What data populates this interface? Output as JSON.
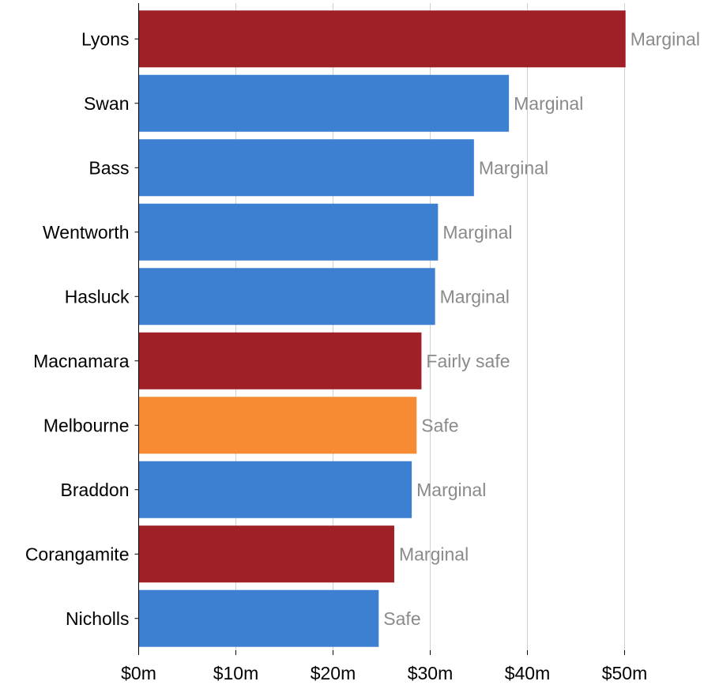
{
  "colors": {
    "red": "#a02027",
    "blue": "#3d80d1",
    "orange": "#f68b33",
    "gridline": "#d0d0d0",
    "axis": "#000000",
    "category_text": "#000000",
    "data_label_text": "#8a8a8a"
  },
  "chart_data": {
    "type": "bar",
    "orientation": "horizontal",
    "title": "",
    "xlabel": "",
    "ylabel": "",
    "xlim": [
      0,
      55
    ],
    "grid": "vertical",
    "x_ticks": [
      0,
      10,
      20,
      30,
      40,
      50
    ],
    "x_tick_labels": [
      "$0m",
      "$10m",
      "$20m",
      "$30m",
      "$40m",
      "$50m"
    ],
    "categories": [
      "Lyons",
      "Swan",
      "Bass",
      "Wentworth",
      "Hasluck",
      "Macnamara",
      "Melbourne",
      "Braddon",
      "Corangamite",
      "Nicholls"
    ],
    "values": [
      50.1,
      38.1,
      34.5,
      30.8,
      30.5,
      29.1,
      28.6,
      28.1,
      26.3,
      24.7
    ],
    "bar_colors": [
      "red",
      "blue",
      "blue",
      "blue",
      "blue",
      "red",
      "orange",
      "blue",
      "red",
      "blue"
    ],
    "data_labels": [
      "Marginal",
      "Marginal",
      "Marginal",
      "Marginal",
      "Marginal",
      "Fairly safe",
      "Safe",
      "Marginal",
      "Marginal",
      "Safe"
    ]
  }
}
